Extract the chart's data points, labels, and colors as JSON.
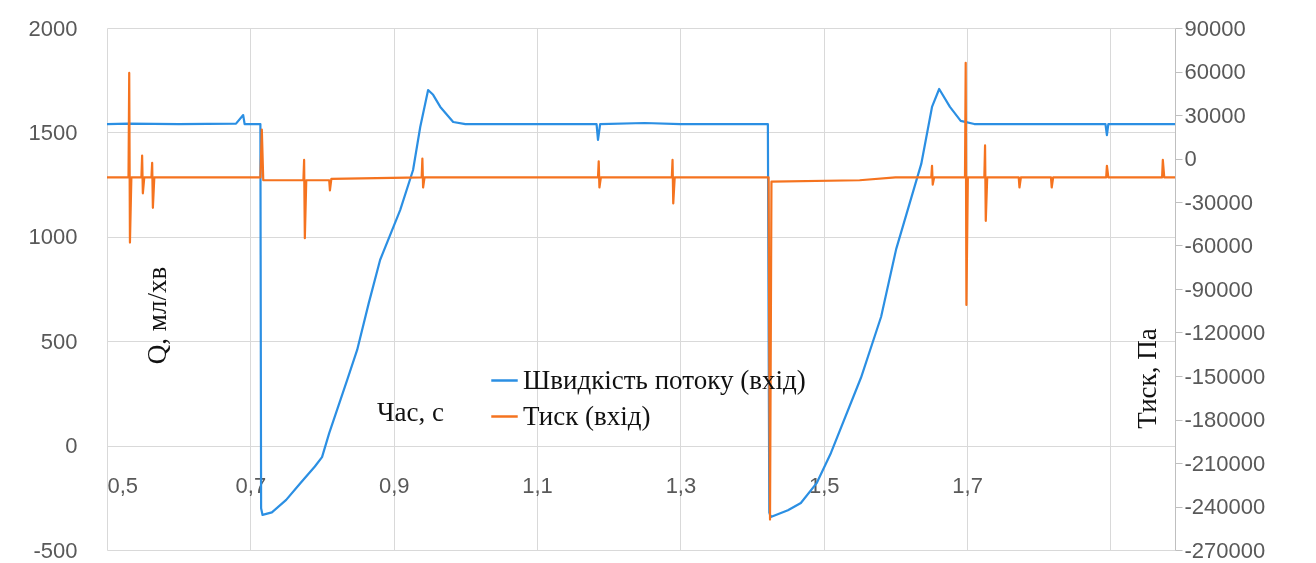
{
  "chart_data": {
    "type": "line",
    "xlabel": "Час, с",
    "ylabel": "Q, мл/хв",
    "y2label": "Тиск, Па",
    "xlim": [
      0.5,
      1.99
    ],
    "xticks": [
      {
        "value": 0.5,
        "label": "0,5"
      },
      {
        "value": 0.7,
        "label": "0,7"
      },
      {
        "value": 0.9,
        "label": "0,9"
      },
      {
        "value": 1.1,
        "label": "1,1"
      },
      {
        "value": 1.3,
        "label": "1,3"
      },
      {
        "value": 1.5,
        "label": "1,5"
      },
      {
        "value": 1.7,
        "label": "1,7"
      },
      {
        "value": 1.9,
        "label": null
      }
    ],
    "ylim": [
      -500,
      2000
    ],
    "yticks": [
      -500,
      0,
      500,
      1000,
      1500,
      2000
    ],
    "y2lim": [
      -270000,
      90000
    ],
    "y2ticks": [
      -270000,
      -240000,
      -210000,
      -180000,
      -150000,
      -120000,
      -90000,
      -60000,
      -30000,
      0,
      30000,
      60000,
      90000
    ],
    "grid": true,
    "legend": "bottom",
    "series": [
      {
        "name": "Швидкість потоку (вхід)",
        "color": "#2b8fe3",
        "x": [
          0.5,
          0.53,
          0.6,
          0.68,
          0.69,
          0.692,
          0.714,
          0.715,
          0.717,
          0.73,
          0.75,
          0.77,
          0.79,
          0.8,
          0.81,
          0.835,
          0.849,
          0.865,
          0.881,
          0.909,
          0.927,
          0.937,
          0.948,
          0.955,
          0.965,
          0.983,
          1.0,
          1.183,
          1.185,
          1.188,
          1.25,
          1.3,
          1.422,
          1.424,
          1.426,
          1.45,
          1.468,
          1.49,
          1.51,
          1.552,
          1.58,
          1.601,
          1.636,
          1.651,
          1.661,
          1.676,
          1.691,
          1.71,
          1.893,
          1.895,
          1.897,
          1.99
        ],
        "values": [
          1540,
          1542,
          1540,
          1542,
          1583,
          1540,
          1540,
          -300,
          -332,
          -320,
          -260,
          -179,
          -100,
          -55,
          60,
          314,
          458,
          680,
          889,
          1128,
          1320,
          1526,
          1703,
          1680,
          1622,
          1550,
          1540,
          1540,
          1464,
          1540,
          1545,
          1540,
          1540,
          -320,
          -342,
          -310,
          -275,
          -180,
          -35,
          326,
          617,
          941,
          1349,
          1622,
          1708,
          1622,
          1555,
          1540,
          1540,
          1487,
          1540,
          1540
        ]
      },
      {
        "name": "Тиск (вхід)",
        "color": "#f5731f",
        "axis": "y2",
        "x": [
          0.5,
          0.53,
          0.531,
          0.532,
          0.534,
          0.548,
          0.549,
          0.55,
          0.552,
          0.562,
          0.563,
          0.564,
          0.566,
          0.714,
          0.716,
          0.718,
          0.774,
          0.775,
          0.776,
          0.778,
          0.81,
          0.811,
          0.813,
          0.939,
          0.94,
          0.941,
          0.943,
          1.185,
          1.186,
          1.187,
          1.189,
          1.288,
          1.289,
          1.29,
          1.292,
          1.423,
          1.425,
          1.427,
          1.55,
          1.6,
          1.65,
          1.651,
          1.652,
          1.654,
          1.697,
          1.698,
          1.699,
          1.701,
          1.724,
          1.725,
          1.726,
          1.728,
          1.772,
          1.773,
          1.775,
          1.817,
          1.818,
          1.82,
          1.894,
          1.895,
          1.897,
          1.972,
          1.973,
          1.975,
          1.99
        ],
        "values": [
          -13000,
          -13000,
          59000,
          -58000,
          -13000,
          -13000,
          2000,
          -24000,
          -13000,
          -13000,
          -3000,
          -34000,
          -13000,
          -13000,
          20000,
          -15000,
          -15000,
          -1000,
          -55000,
          -15000,
          -15000,
          -22000,
          -14000,
          -13000,
          0,
          -20000,
          -13000,
          -13000,
          -2000,
          -20000,
          -13000,
          -13000,
          -1000,
          -31000,
          -13000,
          -13000,
          -249000,
          -16000,
          -15000,
          -13000,
          -13000,
          -5000,
          -18000,
          -13000,
          -13000,
          66000,
          -101000,
          -13000,
          -13000,
          9000,
          -43000,
          -13000,
          -13000,
          -20000,
          -13000,
          -13000,
          -20000,
          -13000,
          -13000,
          -5000,
          -13000,
          -13000,
          -1000,
          -13000,
          -13000
        ]
      }
    ]
  }
}
